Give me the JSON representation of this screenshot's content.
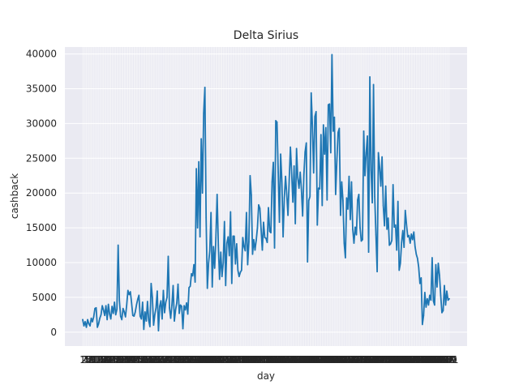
{
  "chart_data": {
    "type": "line",
    "title": "Delta Sirius",
    "xlabel": "day",
    "ylabel": "cashback",
    "xlim": [
      0,
      300
    ],
    "ylim": [
      -2000,
      41000
    ],
    "yticks": [
      0,
      5000,
      10000,
      15000,
      20000,
      25000,
      30000,
      35000,
      40000
    ],
    "grid": true,
    "colors": {
      "background": "#eaeaf2",
      "grid": "#ffffff",
      "line": "#1f77b4"
    },
    "x_start": 1,
    "series": [
      {
        "values": [
          1800,
          900,
          1500,
          700,
          1800,
          1200,
          900,
          2000,
          1500,
          2200,
          3400,
          3500,
          700,
          1200,
          2000,
          2500,
          3800,
          3200,
          2400,
          3800,
          1800,
          4000,
          2600,
          1900,
          3700,
          2700,
          4300,
          2500,
          3300,
          12500,
          4600,
          2300,
          1800,
          3400,
          2900,
          2200,
          3900,
          6000,
          5400,
          5800,
          4200,
          2400,
          2300,
          2900,
          3900,
          4700,
          5300,
          2300,
          1900,
          4300,
          400,
          2900,
          1600,
          4400,
          1700,
          800,
          7000,
          5000,
          1000,
          2500,
          3500,
          5900,
          200,
          3700,
          4500,
          1900,
          6000,
          2800,
          4300,
          5000,
          10900,
          3500,
          2000,
          3900,
          6700,
          1600,
          3200,
          4200,
          6900,
          2700,
          3900,
          3700,
          500,
          3800,
          3200,
          4200,
          2600,
          6400,
          6600,
          8400,
          8100,
          9700,
          7200,
          23500,
          15000,
          24500,
          13700,
          27800,
          20000,
          31500,
          35200,
          16500,
          6300,
          9900,
          11700,
          17200,
          6500,
          12300,
          9200,
          13600,
          19800,
          12500,
          7600,
          11500,
          8000,
          10000,
          15900,
          6700,
          12800,
          13700,
          11000,
          17300,
          7000,
          13800,
          13800,
          9800,
          12700,
          8900,
          8000,
          8600,
          8900,
          13600,
          12300,
          11700,
          17200,
          9700,
          13000,
          22500,
          19700,
          11200,
          13300,
          11800,
          13200,
          15000,
          18300,
          17800,
          14800,
          11800,
          15800,
          13600,
          13500,
          12900,
          17900,
          14500,
          14300,
          21600,
          24400,
          12100,
          30400,
          30200,
          23000,
          15800,
          25600,
          21700,
          13700,
          19300,
          22400,
          19800,
          16800,
          21900,
          26600,
          22900,
          18700,
          23900,
          15600,
          26400,
          22200,
          20700,
          23000,
          20500,
          16700,
          22600,
          25900,
          27200,
          10100,
          18900,
          19500,
          34400,
          29600,
          22900,
          31000,
          31700,
          15400,
          20700,
          20600,
          28400,
          18200,
          29800,
          25600,
          29400,
          19000,
          32700,
          32800,
          25800,
          39900,
          28900,
          30900,
          19800,
          24600,
          28700,
          29300,
          16800,
          21600,
          18900,
          12800,
          10700,
          19300,
          17700,
          22400,
          16200,
          21600,
          14800,
          12800,
          15100,
          14000,
          19000,
          19800,
          15000,
          13100,
          13300,
          28900,
          22500,
          25800,
          28200,
          11500,
          36700,
          23300,
          18600,
          35600,
          19500,
          14000,
          8700,
          25800,
          23700,
          21000,
          25200,
          18200,
          15300,
          21000,
          14800,
          16400,
          12500,
          12700,
          13200,
          21200,
          15100,
          15400,
          11800,
          18800,
          8900,
          9900,
          12900,
          14600,
          12200,
          17500,
          15500,
          13700,
          13900,
          12800,
          14100,
          13300,
          14400,
          12300,
          11200,
          10600,
          9300,
          7000,
          7800,
          1100,
          2400,
          5700,
          3600,
          4800,
          3900,
          5300,
          4600,
          10700,
          4500,
          3900,
          9700,
          6500,
          9900,
          8200,
          5300,
          2800,
          3100,
          6700,
          3900,
          5900,
          4600,
          4800
        ]
      }
    ]
  }
}
